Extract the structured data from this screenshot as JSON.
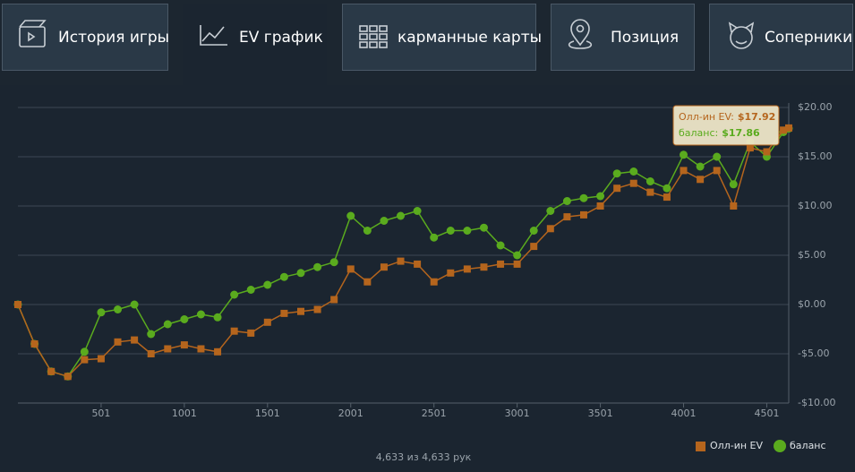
{
  "tabs": [
    "История игры",
    "EV график",
    "карманные карты",
    "Позиция",
    "Соперники"
  ],
  "active_tab": 1,
  "footer": "4,633 из 4,633 рук",
  "tooltip": [
    {
      "label": "Олл-ин EV:",
      "value": "$17.92"
    },
    {
      "label": "баланс:",
      "value": "$17.86"
    }
  ],
  "chart_data": {
    "type": "line",
    "x": [
      1,
      101,
      201,
      301,
      401,
      501,
      601,
      701,
      801,
      901,
      1001,
      1101,
      1201,
      1301,
      1401,
      1501,
      1601,
      1701,
      1801,
      1901,
      2001,
      2101,
      2201,
      2301,
      2401,
      2501,
      2601,
      2701,
      2801,
      2901,
      3001,
      3101,
      3201,
      3301,
      3401,
      3501,
      3601,
      3701,
      3801,
      3901,
      4001,
      4101,
      4201,
      4301,
      4401,
      4501,
      4601,
      4633
    ],
    "series": [
      {
        "name": "Олл-ин EV",
        "color": "#b5651d",
        "marker": "square",
        "values": [
          0,
          -4,
          -6.8,
          -7.3,
          -5.6,
          -5.5,
          -3.8,
          -3.6,
          -5,
          -4.5,
          -4.1,
          -4.5,
          -4.8,
          -2.7,
          -2.9,
          -1.8,
          -0.9,
          -0.7,
          -0.5,
          0.5,
          3.6,
          2.3,
          3.8,
          4.4,
          4.1,
          2.3,
          3.2,
          3.6,
          3.8,
          4.1,
          4.1,
          5.9,
          7.7,
          8.9,
          9.1,
          10,
          11.8,
          12.3,
          11.4,
          10.9,
          13.6,
          12.7,
          13.6,
          10,
          15.9,
          15.5,
          17.7,
          17.92
        ]
      },
      {
        "name": "баланс",
        "color": "#5aab1e",
        "marker": "circle",
        "values": [
          0,
          -4,
          -6.8,
          -7.3,
          -4.8,
          -0.8,
          -0.5,
          0,
          -3,
          -2,
          -1.5,
          -1,
          -1.3,
          1,
          1.5,
          2,
          2.8,
          3.2,
          3.8,
          4.3,
          9,
          7.5,
          8.5,
          9,
          9.5,
          6.8,
          7.5,
          7.5,
          7.8,
          6,
          5,
          7.5,
          9.5,
          10.5,
          10.8,
          11,
          13.3,
          13.5,
          12.5,
          11.8,
          15.2,
          14,
          15,
          12.2,
          16.5,
          15,
          17.5,
          17.86
        ]
      }
    ],
    "xlim": [
      1,
      4633
    ],
    "xticks": [
      501,
      1001,
      1501,
      2001,
      2501,
      3001,
      3501,
      4001,
      4501
    ],
    "ylim": [
      -10,
      20
    ],
    "yticks": [
      {
        "value": -10,
        "label": "-$10.00"
      },
      {
        "value": -5,
        "label": "-$5.00"
      },
      {
        "value": 0,
        "label": "$0.00"
      },
      {
        "value": 5,
        "label": "$5.00"
      },
      {
        "value": 10,
        "label": "$10.00"
      },
      {
        "value": 15,
        "label": "$15.00"
      },
      {
        "value": 20,
        "label": "$20.00"
      }
    ],
    "grid": true,
    "legend": "bottom-right"
  }
}
